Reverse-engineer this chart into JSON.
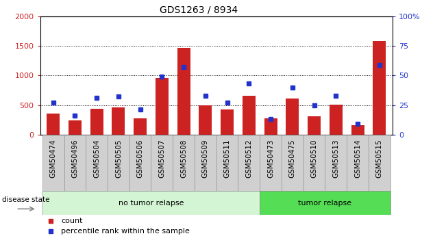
{
  "title": "GDS1263 / 8934",
  "samples": [
    "GSM50474",
    "GSM50496",
    "GSM50504",
    "GSM50505",
    "GSM50506",
    "GSM50507",
    "GSM50508",
    "GSM50509",
    "GSM50511",
    "GSM50512",
    "GSM50473",
    "GSM50475",
    "GSM50510",
    "GSM50513",
    "GSM50514",
    "GSM50515"
  ],
  "counts": [
    350,
    240,
    440,
    460,
    270,
    960,
    1470,
    490,
    430,
    660,
    280,
    610,
    310,
    510,
    155,
    1590
  ],
  "percentiles": [
    27,
    16,
    31,
    32,
    21,
    49,
    57,
    33,
    27,
    43,
    13,
    40,
    25,
    33,
    9,
    59
  ],
  "no_tumor_count": 10,
  "tumor_count": 6,
  "ylim_left": [
    0,
    2000
  ],
  "ylim_right": [
    0,
    100
  ],
  "left_yticks": [
    0,
    500,
    1000,
    1500,
    2000
  ],
  "right_yticks": [
    0,
    25,
    50,
    75,
    100
  ],
  "bar_color": "#cc2222",
  "dot_color": "#2233cc",
  "no_tumor_bg": "#d4f5d4",
  "tumor_bg": "#55dd55",
  "tick_bg": "#d0d0d0",
  "legend_count_label": "count",
  "legend_pct_label": "percentile rank within the sample",
  "disease_state_label": "disease state",
  "no_tumor_label": "no tumor relapse",
  "tumor_label": "tumor relapse",
  "title_fontsize": 10,
  "axis_fontsize": 8,
  "label_fontsize": 7.5
}
